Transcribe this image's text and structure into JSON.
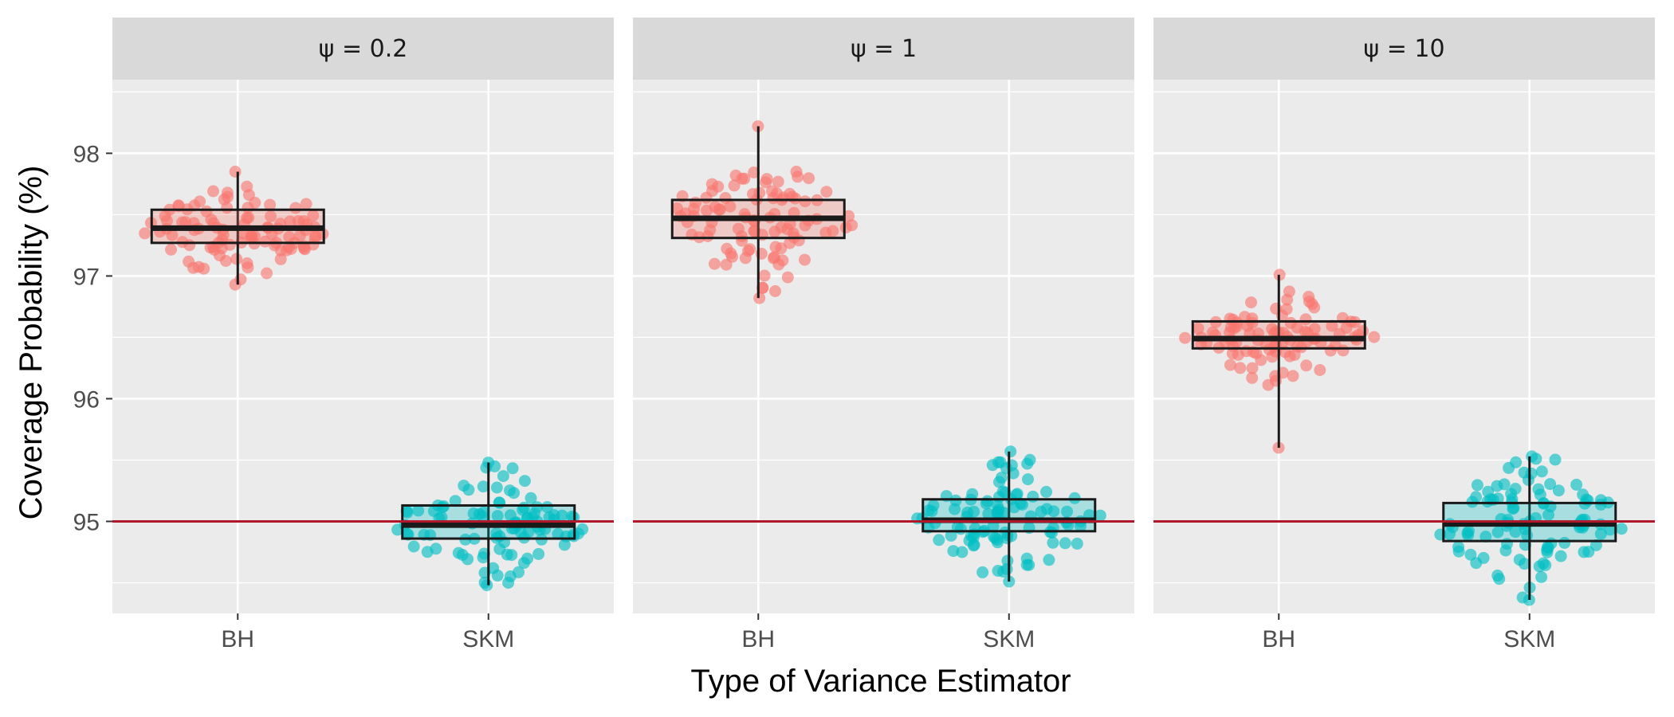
{
  "chart_data": {
    "type": "boxplot-jitter",
    "title": "",
    "xlabel": "Type of Variance Estimator",
    "ylabel": "Coverage Probability (%)",
    "ylim": [
      94.25,
      98.6
    ],
    "y_ticks": [
      95,
      96,
      97,
      98
    ],
    "y_tick_labels": [
      "95",
      "96",
      "97",
      "98"
    ],
    "categories": [
      "BH",
      "SKM"
    ],
    "reference_line": {
      "y": 95,
      "color": "#b2182b"
    },
    "colors": {
      "BH": "#F8766D",
      "SKM": "#00BFC4"
    },
    "panels": [
      {
        "label": "ψ = 0.2",
        "boxes": [
          {
            "category": "BH",
            "min": 96.93,
            "q1": 97.27,
            "median": 97.39,
            "q3": 97.54,
            "max": 97.85,
            "points": 100,
            "spread": 0.3
          },
          {
            "category": "SKM",
            "min": 94.48,
            "q1": 94.86,
            "median": 94.97,
            "q3": 95.13,
            "max": 95.48,
            "points": 100,
            "spread": 0.27
          }
        ]
      },
      {
        "label": "ψ = 1",
        "boxes": [
          {
            "category": "BH",
            "min": 96.82,
            "q1": 97.31,
            "median": 97.47,
            "q3": 97.62,
            "max": 98.22,
            "points": 100,
            "spread": 0.3
          },
          {
            "category": "SKM",
            "min": 94.51,
            "q1": 94.92,
            "median": 95.01,
            "q3": 95.18,
            "max": 95.57,
            "points": 100,
            "spread": 0.27
          }
        ]
      },
      {
        "label": "ψ = 10",
        "boxes": [
          {
            "category": "BH",
            "min": 95.6,
            "q1": 96.41,
            "median": 96.49,
            "q3": 96.63,
            "max": 97.01,
            "points": 100,
            "spread": 0.3
          },
          {
            "category": "SKM",
            "min": 94.36,
            "q1": 94.84,
            "median": 94.98,
            "q3": 95.15,
            "max": 95.53,
            "points": 100,
            "spread": 0.27
          }
        ]
      }
    ]
  }
}
